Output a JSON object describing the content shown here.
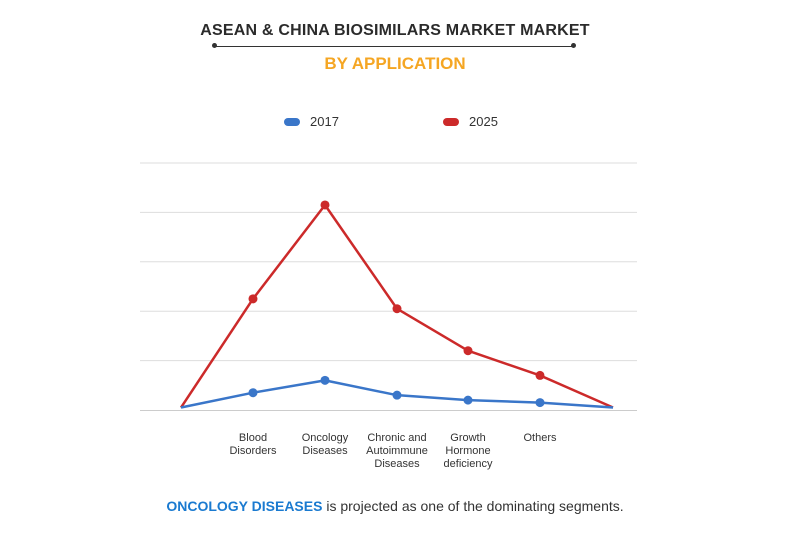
{
  "chart_data": {
    "type": "line",
    "title": "ASEAN & CHINA BIOSIMILARS MARKET MARKET",
    "subtitle": "BY APPLICATION",
    "categories": [
      "",
      "Blood\nDisorders",
      "Oncology\nDiseases",
      "Chronic and\nAutoimmune\nDiseases",
      "Growth\nHormone\ndeficiency",
      "Others",
      ""
    ],
    "series": [
      {
        "name": "2017",
        "color": "#3a76c9",
        "values": [
          0.5,
          3.5,
          6.0,
          3.0,
          2.0,
          1.5,
          0.5
        ]
      },
      {
        "name": "2025",
        "color": "#cc2a2a",
        "values": [
          0.5,
          22.5,
          41.5,
          20.5,
          12.0,
          7.0,
          0.5
        ]
      }
    ],
    "ylim": [
      0,
      50
    ],
    "grid": true,
    "legend_position": "top"
  },
  "footer": {
    "highlight": "ONCOLOGY DISEASES",
    "text": " is projected as one of the dominating segments."
  }
}
